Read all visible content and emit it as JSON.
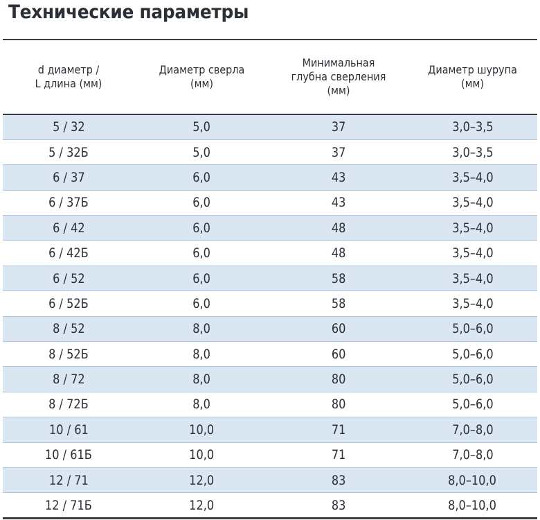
{
  "title": "Технические параметры",
  "table": {
    "headers": [
      [
        "d диаметр /",
        "L длина (мм)"
      ],
      [
        "Диаметр сверла",
        "(мм)"
      ],
      [
        "Минимальная",
        "глубна сверления",
        "(мм)"
      ],
      [
        "Диаметр шурупа",
        "(мм)"
      ]
    ],
    "rows": [
      [
        "5 / 32",
        "5,0",
        "37",
        "3,0–3,5"
      ],
      [
        "5 / 32Б",
        "5,0",
        "37",
        "3,0–3,5"
      ],
      [
        "6 / 37",
        "6,0",
        "43",
        "3,5–4,0"
      ],
      [
        "6 / 37Б",
        "6,0",
        "43",
        "3,5–4,0"
      ],
      [
        "6 / 42",
        "6,0",
        "48",
        "3,5–4,0"
      ],
      [
        "6 / 42Б",
        "6,0",
        "48",
        "3,5–4,0"
      ],
      [
        "6 / 52",
        "6,0",
        "58",
        "3,5–4,0"
      ],
      [
        "6 / 52Б",
        "6,0",
        "58",
        "3,5–4,0"
      ],
      [
        "8 / 52",
        "8,0",
        "60",
        "5,0–6,0"
      ],
      [
        "8 / 52Б",
        "8,0",
        "60",
        "5,0–6,0"
      ],
      [
        "8 / 72",
        "8,0",
        "80",
        "5,0–6,0"
      ],
      [
        "8 / 72Б",
        "8,0",
        "80",
        "5,0–6,0"
      ],
      [
        "10 / 61",
        "10,0",
        "71",
        "7,0–8,0"
      ],
      [
        "10 / 61Б",
        "10,0",
        "71",
        "7,0–8,0"
      ],
      [
        "12 / 71",
        "12,0",
        "83",
        "8,0–10,0"
      ],
      [
        "12 / 71Б",
        "12,0",
        "83",
        "8,0–10,0"
      ]
    ]
  },
  "colors": {
    "shaded_row": "#dbe6f3",
    "row_divider": "#a9c4e4",
    "rule": "#3a3d42",
    "text": "#2b2f36"
  }
}
